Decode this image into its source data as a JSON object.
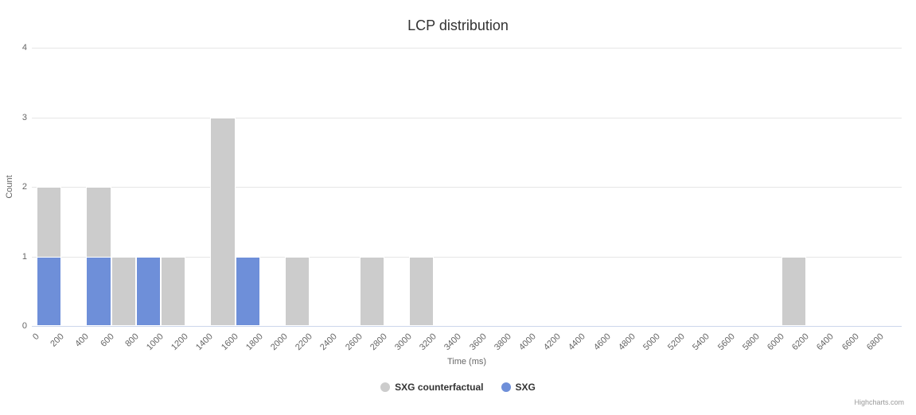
{
  "title": "LCP distribution",
  "yAxis": {
    "title": "Count",
    "ticks": [
      "0",
      "1",
      "2",
      "3",
      "4"
    ],
    "max": 4
  },
  "xAxis": {
    "title": "Time (ms)",
    "labels": [
      "0",
      "200",
      "400",
      "600",
      "800",
      "1000",
      "1200",
      "1400",
      "1600",
      "1800",
      "2000",
      "2200",
      "2400",
      "2600",
      "2800",
      "3000",
      "3200",
      "3400",
      "3600",
      "3800",
      "4000",
      "4200",
      "4400",
      "4600",
      "4800",
      "5000",
      "5200",
      "5400",
      "5600",
      "5800",
      "6000",
      "6200",
      "6400",
      "6600",
      "6800"
    ],
    "bin_size": 200
  },
  "legend": [
    {
      "label": "SXG counterfactual",
      "color": "#cccccc"
    },
    {
      "label": "SXG",
      "color": "#6e8fd9"
    }
  ],
  "credits": "Highcharts.com",
  "chart_data": {
    "type": "bar",
    "title": "LCP distribution",
    "xlabel": "Time (ms)",
    "ylabel": "Count",
    "ylim": [
      0,
      4
    ],
    "bin_width_ms": 200,
    "x_range": [
      0,
      7000
    ],
    "series": [
      {
        "name": "SXG counterfactual",
        "color": "#cccccc",
        "points": [
          {
            "x": 0,
            "y": 2
          },
          {
            "x": 400,
            "y": 2
          },
          {
            "x": 600,
            "y": 1
          },
          {
            "x": 1000,
            "y": 1
          },
          {
            "x": 1400,
            "y": 3
          },
          {
            "x": 2000,
            "y": 1
          },
          {
            "x": 2600,
            "y": 1
          },
          {
            "x": 3000,
            "y": 1
          },
          {
            "x": 6000,
            "y": 1
          }
        ]
      },
      {
        "name": "SXG",
        "color": "#6e8fd9",
        "points": [
          {
            "x": 0,
            "y": 1
          },
          {
            "x": 400,
            "y": 1
          },
          {
            "x": 800,
            "y": 1
          },
          {
            "x": 1600,
            "y": 1
          }
        ]
      }
    ],
    "legend_position": "bottom-center",
    "grid": "horizontal"
  }
}
